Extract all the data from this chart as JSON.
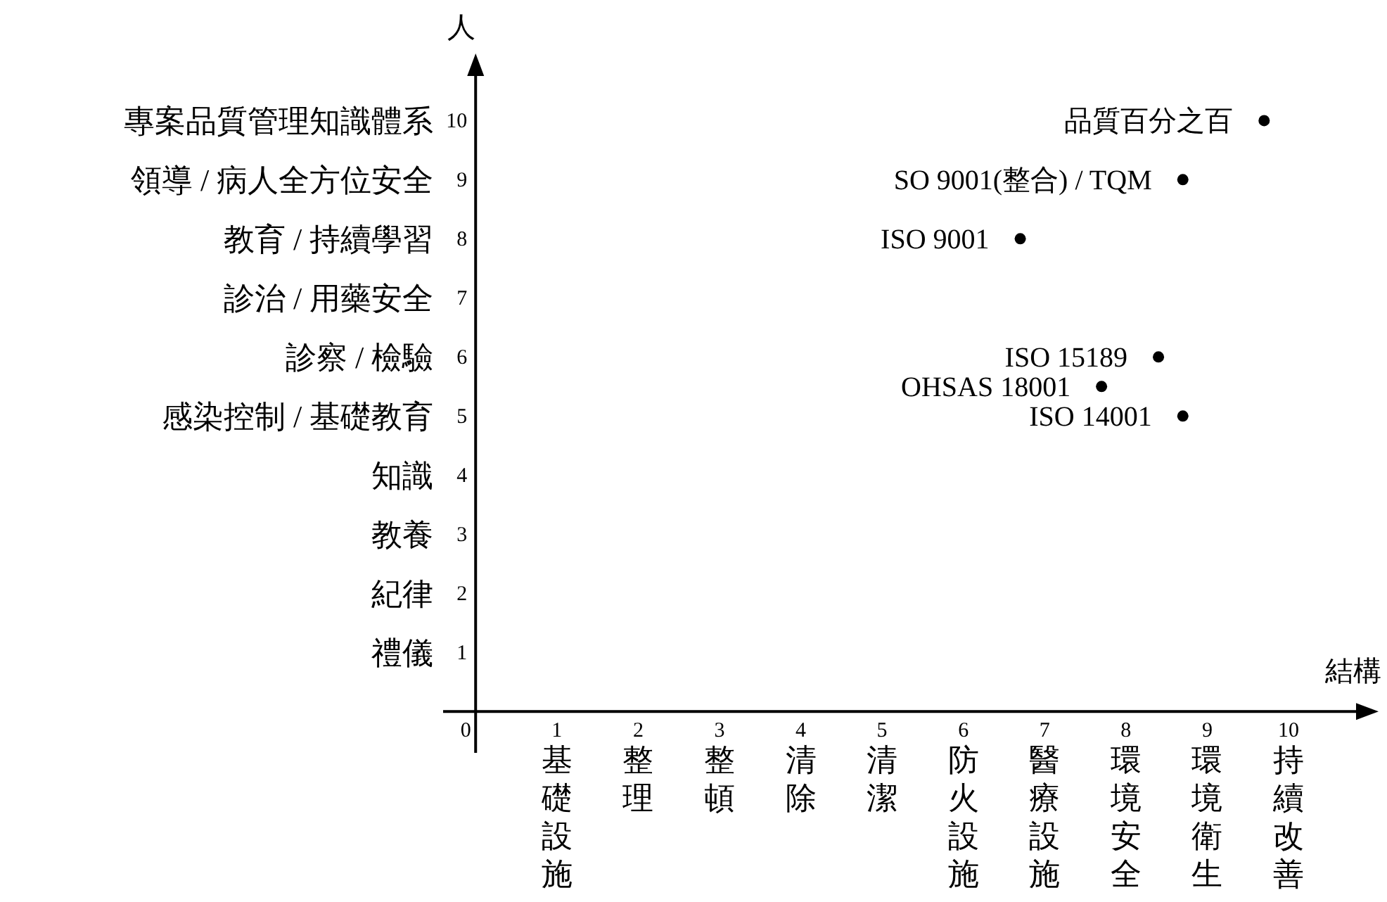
{
  "chart_data": {
    "type": "scatter",
    "xlabel": "結構",
    "ylabel": "人",
    "x": [
      9.7,
      8.7,
      6.7,
      8.4,
      7.7,
      8.7
    ],
    "series": [
      {
        "color": "#000000",
        "values": [
          10,
          9,
          8,
          6,
          5.5,
          5
        ]
      }
    ],
    "marker": "circle",
    "annotations": [
      {
        "text": "品質百分之百",
        "x": 9.7,
        "y": 10
      },
      {
        "text": "SO 9001(整合) / TQM",
        "x": 8.7,
        "y": 9
      },
      {
        "text": "ISO 9001",
        "x": 6.7,
        "y": 8
      },
      {
        "text": "ISO 15189",
        "x": 8.4,
        "y": 6
      },
      {
        "text": "OHSAS 18001",
        "x": 7.7,
        "y": 5.5
      },
      {
        "text": "ISO 14001",
        "x": 8.7,
        "y": 5
      },
      "基礎設施",
      "整理",
      "整頓",
      "清除",
      "清潔",
      "防火設施",
      "醫療設施",
      "環境安全",
      "環境衛生",
      "持續改善",
      "禮儀",
      "紀律",
      "教養",
      "知識",
      "感染控制 / 基礎教育",
      "診察 / 檢驗",
      "診治 / 用藥安全",
      "教育 / 持續學習",
      "領導 / 病人全方位安全",
      "專案品質管理知識體系"
    ],
    "xlim": [
      -0.4,
      10.9
    ],
    "ylim": [
      -0.7,
      10.85
    ],
    "xticks": [
      0,
      1,
      2,
      3,
      4,
      5,
      6,
      7,
      8,
      9,
      10
    ],
    "yticks": [
      1,
      2,
      3,
      4,
      5,
      6,
      7,
      8,
      9,
      10
    ],
    "grid": false
  }
}
